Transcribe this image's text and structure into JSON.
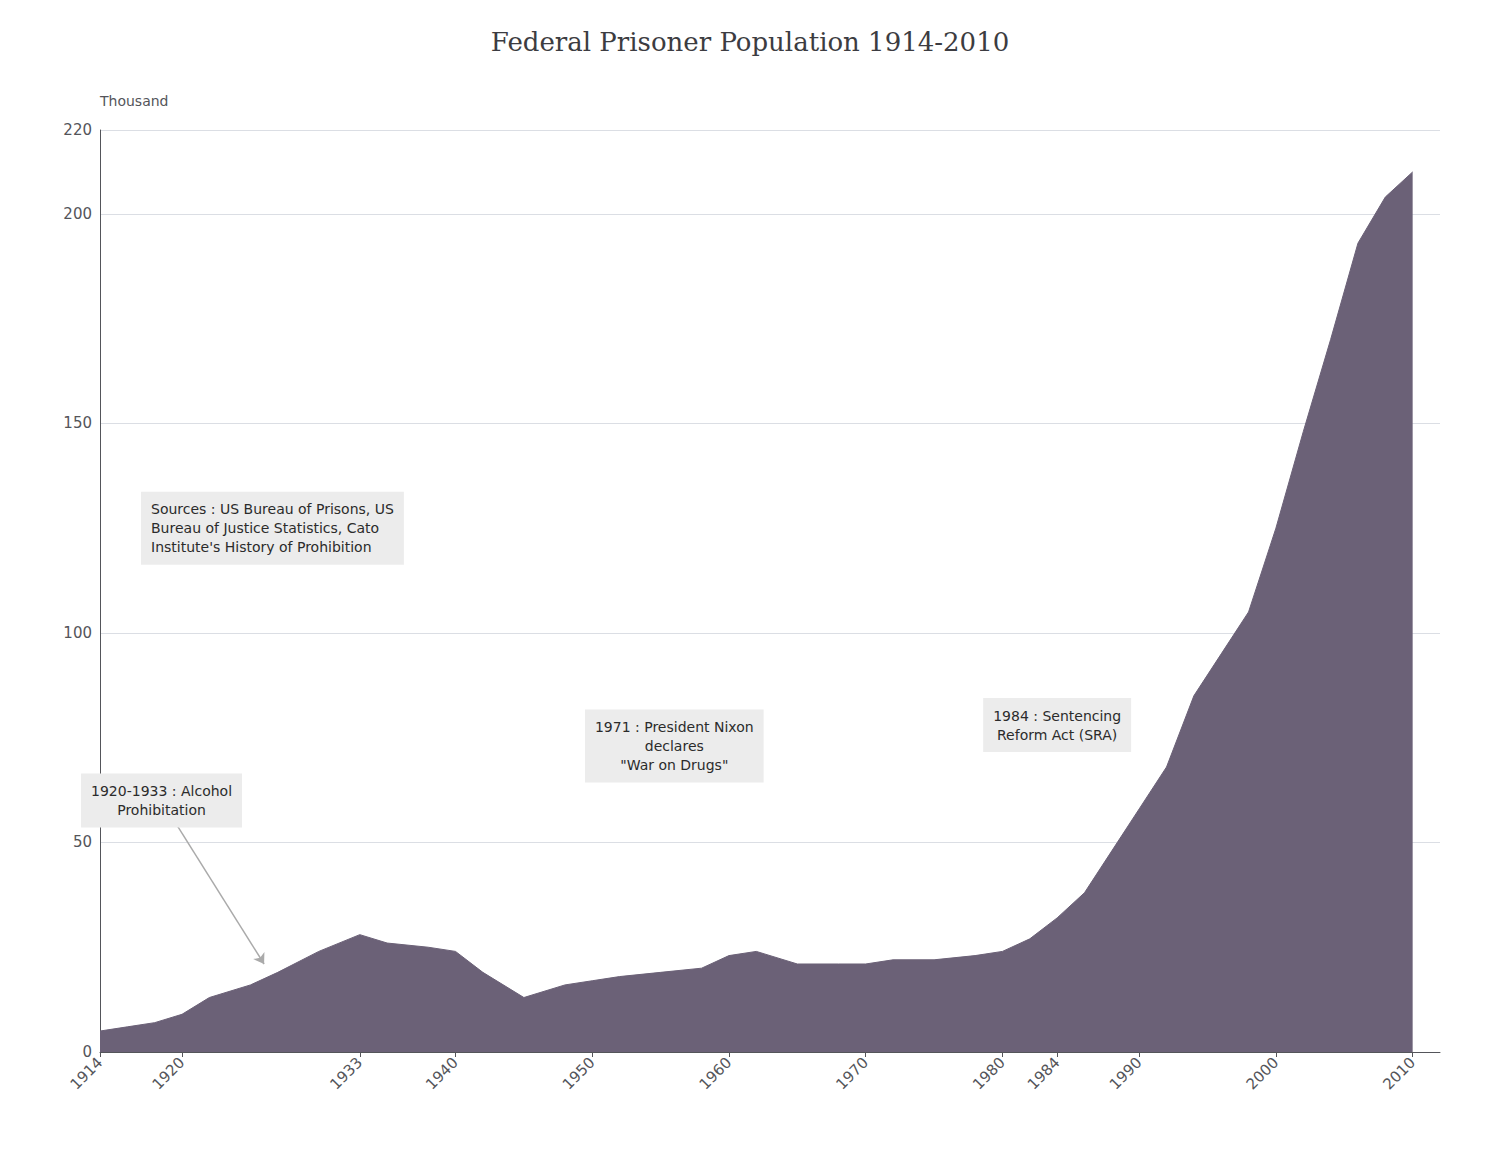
{
  "chart_data": {
    "type": "area",
    "title": "Federal Prisoner Population 1914-2010",
    "y_label": "Thousand",
    "color": "#6b6177",
    "x": [
      1914,
      1916,
      1918,
      1920,
      1922,
      1925,
      1927,
      1930,
      1933,
      1935,
      1938,
      1940,
      1942,
      1945,
      1948,
      1950,
      1952,
      1955,
      1958,
      1960,
      1962,
      1965,
      1968,
      1970,
      1972,
      1975,
      1978,
      1980,
      1982,
      1984,
      1986,
      1988,
      1990,
      1992,
      1994,
      1996,
      1998,
      2000,
      2002,
      2004,
      2006,
      2008,
      2010
    ],
    "values": [
      5,
      6,
      7,
      9,
      13,
      16,
      19,
      24,
      28,
      26,
      25,
      24,
      19,
      13,
      16,
      17,
      18,
      19,
      20,
      23,
      24,
      21,
      21,
      21,
      22,
      22,
      23,
      24,
      27,
      32,
      38,
      48,
      58,
      68,
      85,
      95,
      105,
      125,
      148,
      170,
      193,
      204,
      210
    ],
    "xlim": [
      1914,
      2012
    ],
    "xticks": [
      1914,
      1920,
      1933,
      1940,
      1950,
      1960,
      1970,
      1980,
      1984,
      1990,
      2000,
      2010
    ],
    "ylim": [
      0,
      220
    ],
    "yticks": [
      0,
      50,
      100,
      150,
      200
    ],
    "grid": true,
    "annotations": [
      {
        "text": "1920-1933 : Alcohol\nProhibitation",
        "x": 1918.5,
        "y": 60,
        "arrow_x": 1926,
        "arrow_y": 21
      },
      {
        "text": "1971 : President Nixon\ndeclares\n\"War on Drugs\"",
        "x": 1956,
        "y": 73
      },
      {
        "text": "1984 : Sentencing\nReform Act (SRA)",
        "x": 1984,
        "y": 78
      }
    ],
    "source": {
      "text": "Sources : US Bureau of Prisons, US\nBureau of Justice Statistics, Cato\nInstitute's History of Prohibition",
      "x": 1917,
      "y": 125
    }
  }
}
